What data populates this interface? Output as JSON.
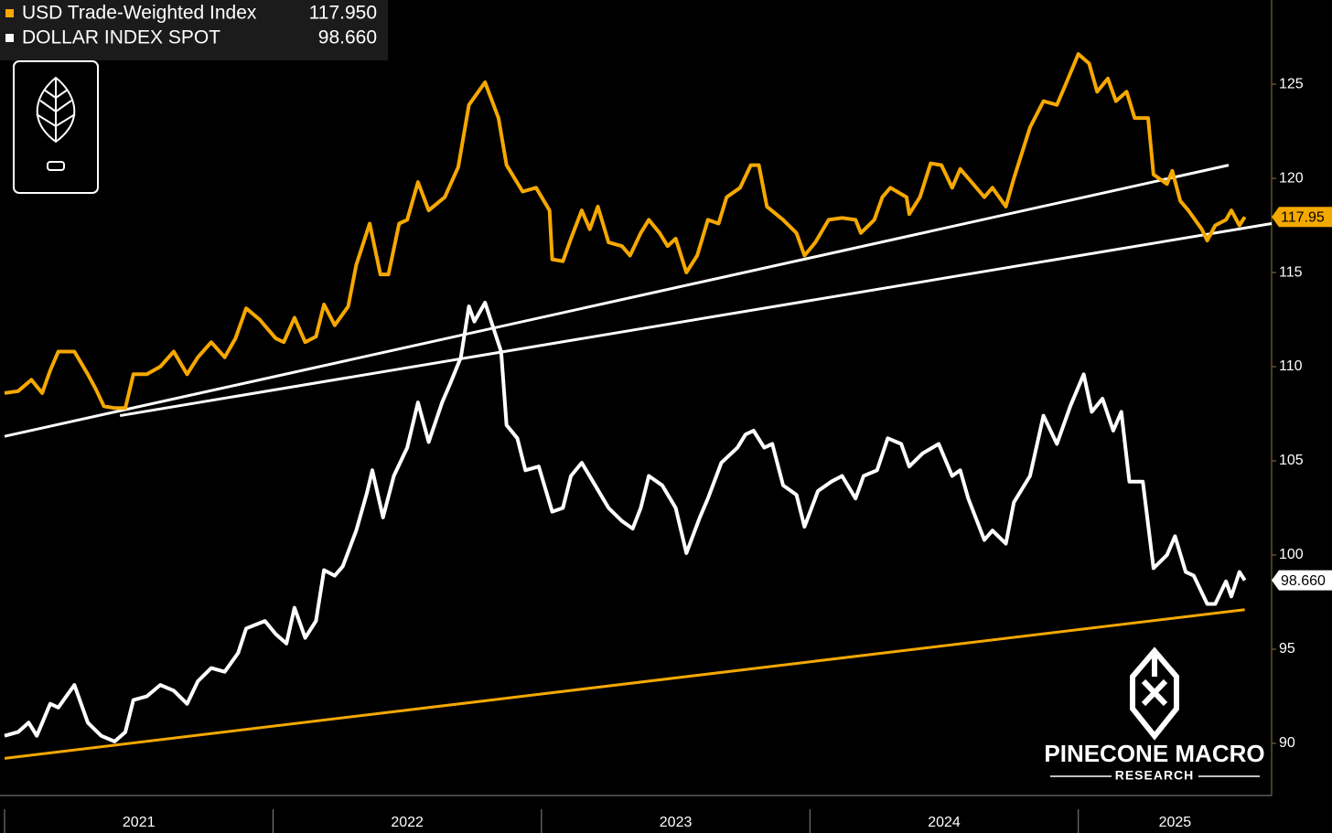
{
  "chart_data": {
    "type": "line",
    "series": [
      {
        "name": "USD Trade-Weighted Index",
        "legend_value": "117.950",
        "end_label": "117.95",
        "color": "#f5a800",
        "x": [
          2021.0,
          2021.05,
          2021.1,
          2021.14,
          2021.17,
          2021.2,
          2021.26,
          2021.31,
          2021.34,
          2021.37,
          2021.41,
          2021.45,
          2021.48,
          2021.53,
          2021.58,
          2021.63,
          2021.68,
          2021.72,
          2021.77,
          2021.82,
          2021.86,
          2021.9,
          2021.95,
          2022.01,
          2022.04,
          2022.08,
          2022.12,
          2022.16,
          2022.19,
          2022.23,
          2022.28,
          2022.31,
          2022.36,
          2022.4,
          2022.43,
          2022.47,
          2022.5,
          2022.54,
          2022.58,
          2022.64,
          2022.69,
          2022.73,
          2022.79,
          2022.84,
          2022.87,
          2022.93,
          2022.98,
          2023.03,
          2023.04,
          2023.08,
          2023.11,
          2023.15,
          2023.18,
          2023.21,
          2023.25,
          2023.3,
          2023.33,
          2023.37,
          2023.4,
          2023.44,
          2023.47,
          2023.5,
          2023.54,
          2023.58,
          2023.62,
          2023.66,
          2023.69,
          2023.74,
          2023.78,
          2023.81,
          2023.84,
          2023.9,
          2023.95,
          2023.98,
          2024.02,
          2024.07,
          2024.12,
          2024.17,
          2024.19,
          2024.24,
          2024.27,
          2024.3,
          2024.36,
          2024.37,
          2024.41,
          2024.45,
          2024.49,
          2024.53,
          2024.56,
          2024.59,
          2024.65,
          2024.68,
          2024.73,
          2024.76,
          2024.82,
          2024.87,
          2024.92,
          2024.95,
          2025.0,
          2025.04,
          2025.07,
          2025.11,
          2025.14,
          2025.18,
          2025.21,
          2025.26,
          2025.28,
          2025.33,
          2025.35,
          2025.38,
          2025.41,
          2025.46,
          2025.48,
          2025.51,
          2025.55,
          2025.57,
          2025.6,
          2025.62
        ],
        "values": [
          108.6,
          108.7,
          109.3,
          108.6,
          109.8,
          110.8,
          110.8,
          109.6,
          108.8,
          107.9,
          107.8,
          107.8,
          109.6,
          109.6,
          110.0,
          110.8,
          109.6,
          110.5,
          111.3,
          110.5,
          111.5,
          113.1,
          112.5,
          111.5,
          111.3,
          112.6,
          111.3,
          111.6,
          113.3,
          112.2,
          113.2,
          115.4,
          117.6,
          114.9,
          114.9,
          117.6,
          117.8,
          119.8,
          118.3,
          119.0,
          120.6,
          123.9,
          125.1,
          123.2,
          120.7,
          119.3,
          119.5,
          118.3,
          115.7,
          115.6,
          116.8,
          118.3,
          117.3,
          118.5,
          116.6,
          116.4,
          115.9,
          117.1,
          117.8,
          117.1,
          116.4,
          116.8,
          115.0,
          115.9,
          117.8,
          117.6,
          119.0,
          119.5,
          120.7,
          120.7,
          118.5,
          117.8,
          117.1,
          115.9,
          116.6,
          117.8,
          117.9,
          117.8,
          117.1,
          117.8,
          119.0,
          119.5,
          119.0,
          118.1,
          119.0,
          120.8,
          120.7,
          119.5,
          120.5,
          120.0,
          119.0,
          119.5,
          118.5,
          120.0,
          122.7,
          124.1,
          123.9,
          124.9,
          126.6,
          126.1,
          124.6,
          125.3,
          124.1,
          124.6,
          123.2,
          123.2,
          120.2,
          119.7,
          120.4,
          118.8,
          118.3,
          117.3,
          116.7,
          117.5,
          117.8,
          118.3,
          117.5,
          117.95
        ]
      },
      {
        "name": "DOLLAR INDEX SPOT",
        "legend_value": "98.660",
        "end_label": "98.660",
        "color": "#ffffff",
        "x": [
          2021.0,
          2021.05,
          2021.09,
          2021.12,
          2021.17,
          2021.2,
          2021.26,
          2021.31,
          2021.36,
          2021.41,
          2021.45,
          2021.48,
          2021.53,
          2021.58,
          2021.63,
          2021.68,
          2021.72,
          2021.77,
          2021.82,
          2021.87,
          2021.9,
          2021.97,
          2022.01,
          2022.05,
          2022.08,
          2022.12,
          2022.16,
          2022.19,
          2022.23,
          2022.26,
          2022.31,
          2022.35,
          2022.37,
          2022.41,
          2022.45,
          2022.5,
          2022.54,
          2022.58,
          2022.63,
          2022.66,
          2022.7,
          2022.73,
          2022.75,
          2022.79,
          2022.85,
          2022.87,
          2022.91,
          2022.94,
          2022.99,
          2023.04,
          2023.08,
          2023.11,
          2023.15,
          2023.2,
          2023.25,
          2023.3,
          2023.34,
          2023.37,
          2023.4,
          2023.45,
          2023.5,
          2023.54,
          2023.59,
          2023.62,
          2023.67,
          2023.73,
          2023.76,
          2023.79,
          2023.83,
          2023.86,
          2023.9,
          2023.95,
          2023.98,
          2024.03,
          2024.08,
          2024.12,
          2024.17,
          2024.2,
          2024.25,
          2024.29,
          2024.34,
          2024.37,
          2024.42,
          2024.48,
          2024.53,
          2024.56,
          2024.59,
          2024.65,
          2024.68,
          2024.73,
          2024.76,
          2024.82,
          2024.87,
          2024.92,
          2024.97,
          2025.02,
          2025.05,
          2025.09,
          2025.13,
          2025.16,
          2025.19,
          2025.24,
          2025.28,
          2025.33,
          2025.36,
          2025.4,
          2025.43,
          2025.48,
          2025.51,
          2025.55,
          2025.57,
          2025.6,
          2025.62
        ],
        "values": [
          90.4,
          90.6,
          91.1,
          90.4,
          92.1,
          91.9,
          93.1,
          91.1,
          90.4,
          90.1,
          90.6,
          92.3,
          92.5,
          93.1,
          92.8,
          92.1,
          93.3,
          94.0,
          93.8,
          94.8,
          96.1,
          96.5,
          95.8,
          95.3,
          97.2,
          95.6,
          96.5,
          99.2,
          98.9,
          99.4,
          101.3,
          103.3,
          104.5,
          102.0,
          104.2,
          105.7,
          108.1,
          106.0,
          108.1,
          109.1,
          110.5,
          113.2,
          112.4,
          113.4,
          110.8,
          106.9,
          106.2,
          104.5,
          104.7,
          102.3,
          102.5,
          104.2,
          104.9,
          103.7,
          102.5,
          101.8,
          101.4,
          102.5,
          104.2,
          103.7,
          102.5,
          100.1,
          102.0,
          103.0,
          104.9,
          105.7,
          106.4,
          106.6,
          105.7,
          105.9,
          103.7,
          103.2,
          101.5,
          103.4,
          103.9,
          104.2,
          103.0,
          104.2,
          104.5,
          106.2,
          105.9,
          104.7,
          105.4,
          105.9,
          104.2,
          104.5,
          103.0,
          100.8,
          101.3,
          100.6,
          102.8,
          104.2,
          107.4,
          105.9,
          107.9,
          109.6,
          107.6,
          108.3,
          106.6,
          107.6,
          103.9,
          103.9,
          99.3,
          100.0,
          101.0,
          99.1,
          98.9,
          97.4,
          97.4,
          98.6,
          97.8,
          99.1,
          98.66
        ]
      }
    ],
    "trendlines": [
      {
        "color": "#ffffff",
        "x": [
          2021.0,
          2025.56
        ],
        "y": [
          106.3,
          120.7
        ]
      },
      {
        "color": "#ffffff",
        "x": [
          2021.43,
          2025.72
        ],
        "y": [
          107.4,
          117.6
        ]
      },
      {
        "color": "#f5a800",
        "x": [
          2021.0,
          2025.62
        ],
        "y": [
          89.2,
          97.1
        ]
      }
    ],
    "xlim": [
      2021.0,
      2025.72
    ],
    "xticks": [
      2021,
      2022,
      2023,
      2024,
      2025
    ],
    "ylim": [
      87.23,
      129.47
    ],
    "yticks": [
      90,
      95,
      100,
      105,
      110,
      115,
      120,
      125
    ],
    "watermark": {
      "title": "PINECONE MACRO",
      "subtitle": "RESEARCH"
    }
  }
}
